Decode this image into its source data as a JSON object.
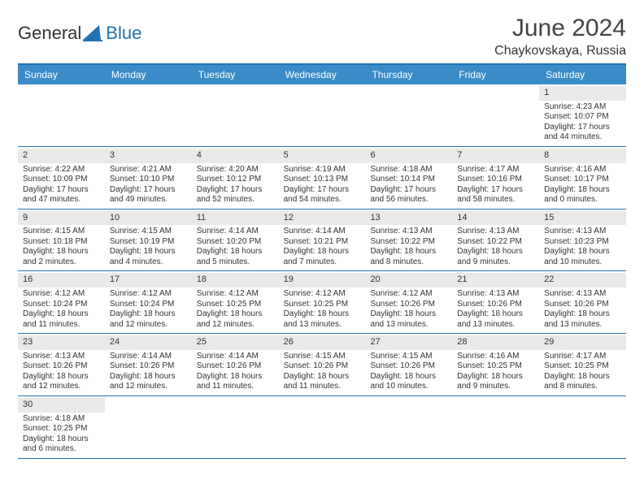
{
  "brand": {
    "word1": "General",
    "word2": "Blue"
  },
  "title": "June 2024",
  "location": "Chaykovskaya, Russia",
  "colors": {
    "header_bg": "#3b8bc8",
    "accent_line": "#2173b5",
    "daynum_bg": "#e9e9e9",
    "text": "#333333",
    "background": "#ffffff"
  },
  "day_names": [
    "Sunday",
    "Monday",
    "Tuesday",
    "Wednesday",
    "Thursday",
    "Friday",
    "Saturday"
  ],
  "labels": {
    "sunrise_prefix": "Sunrise: ",
    "sunset_prefix": "Sunset: ",
    "daylight_prefix": "Daylight: ",
    "hours_word": " hours",
    "minutes_word": " minutes.",
    "and_word": "and "
  },
  "weeks": [
    [
      {
        "day": null
      },
      {
        "day": null
      },
      {
        "day": null
      },
      {
        "day": null
      },
      {
        "day": null
      },
      {
        "day": null
      },
      {
        "day": 1,
        "sunrise": "4:23 AM",
        "sunset": "10:07 PM",
        "dl_h": 17,
        "dl_m": 44
      }
    ],
    [
      {
        "day": 2,
        "sunrise": "4:22 AM",
        "sunset": "10:09 PM",
        "dl_h": 17,
        "dl_m": 47
      },
      {
        "day": 3,
        "sunrise": "4:21 AM",
        "sunset": "10:10 PM",
        "dl_h": 17,
        "dl_m": 49
      },
      {
        "day": 4,
        "sunrise": "4:20 AM",
        "sunset": "10:12 PM",
        "dl_h": 17,
        "dl_m": 52
      },
      {
        "day": 5,
        "sunrise": "4:19 AM",
        "sunset": "10:13 PM",
        "dl_h": 17,
        "dl_m": 54
      },
      {
        "day": 6,
        "sunrise": "4:18 AM",
        "sunset": "10:14 PM",
        "dl_h": 17,
        "dl_m": 56
      },
      {
        "day": 7,
        "sunrise": "4:17 AM",
        "sunset": "10:16 PM",
        "dl_h": 17,
        "dl_m": 58
      },
      {
        "day": 8,
        "sunrise": "4:16 AM",
        "sunset": "10:17 PM",
        "dl_h": 18,
        "dl_m": 0
      }
    ],
    [
      {
        "day": 9,
        "sunrise": "4:15 AM",
        "sunset": "10:18 PM",
        "dl_h": 18,
        "dl_m": 2
      },
      {
        "day": 10,
        "sunrise": "4:15 AM",
        "sunset": "10:19 PM",
        "dl_h": 18,
        "dl_m": 4
      },
      {
        "day": 11,
        "sunrise": "4:14 AM",
        "sunset": "10:20 PM",
        "dl_h": 18,
        "dl_m": 5
      },
      {
        "day": 12,
        "sunrise": "4:14 AM",
        "sunset": "10:21 PM",
        "dl_h": 18,
        "dl_m": 7
      },
      {
        "day": 13,
        "sunrise": "4:13 AM",
        "sunset": "10:22 PM",
        "dl_h": 18,
        "dl_m": 8
      },
      {
        "day": 14,
        "sunrise": "4:13 AM",
        "sunset": "10:22 PM",
        "dl_h": 18,
        "dl_m": 9
      },
      {
        "day": 15,
        "sunrise": "4:13 AM",
        "sunset": "10:23 PM",
        "dl_h": 18,
        "dl_m": 10
      }
    ],
    [
      {
        "day": 16,
        "sunrise": "4:12 AM",
        "sunset": "10:24 PM",
        "dl_h": 18,
        "dl_m": 11
      },
      {
        "day": 17,
        "sunrise": "4:12 AM",
        "sunset": "10:24 PM",
        "dl_h": 18,
        "dl_m": 12
      },
      {
        "day": 18,
        "sunrise": "4:12 AM",
        "sunset": "10:25 PM",
        "dl_h": 18,
        "dl_m": 12
      },
      {
        "day": 19,
        "sunrise": "4:12 AM",
        "sunset": "10:25 PM",
        "dl_h": 18,
        "dl_m": 13
      },
      {
        "day": 20,
        "sunrise": "4:12 AM",
        "sunset": "10:26 PM",
        "dl_h": 18,
        "dl_m": 13
      },
      {
        "day": 21,
        "sunrise": "4:13 AM",
        "sunset": "10:26 PM",
        "dl_h": 18,
        "dl_m": 13
      },
      {
        "day": 22,
        "sunrise": "4:13 AM",
        "sunset": "10:26 PM",
        "dl_h": 18,
        "dl_m": 13
      }
    ],
    [
      {
        "day": 23,
        "sunrise": "4:13 AM",
        "sunset": "10:26 PM",
        "dl_h": 18,
        "dl_m": 12
      },
      {
        "day": 24,
        "sunrise": "4:14 AM",
        "sunset": "10:26 PM",
        "dl_h": 18,
        "dl_m": 12
      },
      {
        "day": 25,
        "sunrise": "4:14 AM",
        "sunset": "10:26 PM",
        "dl_h": 18,
        "dl_m": 11
      },
      {
        "day": 26,
        "sunrise": "4:15 AM",
        "sunset": "10:26 PM",
        "dl_h": 18,
        "dl_m": 11
      },
      {
        "day": 27,
        "sunrise": "4:15 AM",
        "sunset": "10:26 PM",
        "dl_h": 18,
        "dl_m": 10
      },
      {
        "day": 28,
        "sunrise": "4:16 AM",
        "sunset": "10:25 PM",
        "dl_h": 18,
        "dl_m": 9
      },
      {
        "day": 29,
        "sunrise": "4:17 AM",
        "sunset": "10:25 PM",
        "dl_h": 18,
        "dl_m": 8
      }
    ],
    [
      {
        "day": 30,
        "sunrise": "4:18 AM",
        "sunset": "10:25 PM",
        "dl_h": 18,
        "dl_m": 6
      },
      {
        "day": null
      },
      {
        "day": null
      },
      {
        "day": null
      },
      {
        "day": null
      },
      {
        "day": null
      },
      {
        "day": null
      }
    ]
  ]
}
